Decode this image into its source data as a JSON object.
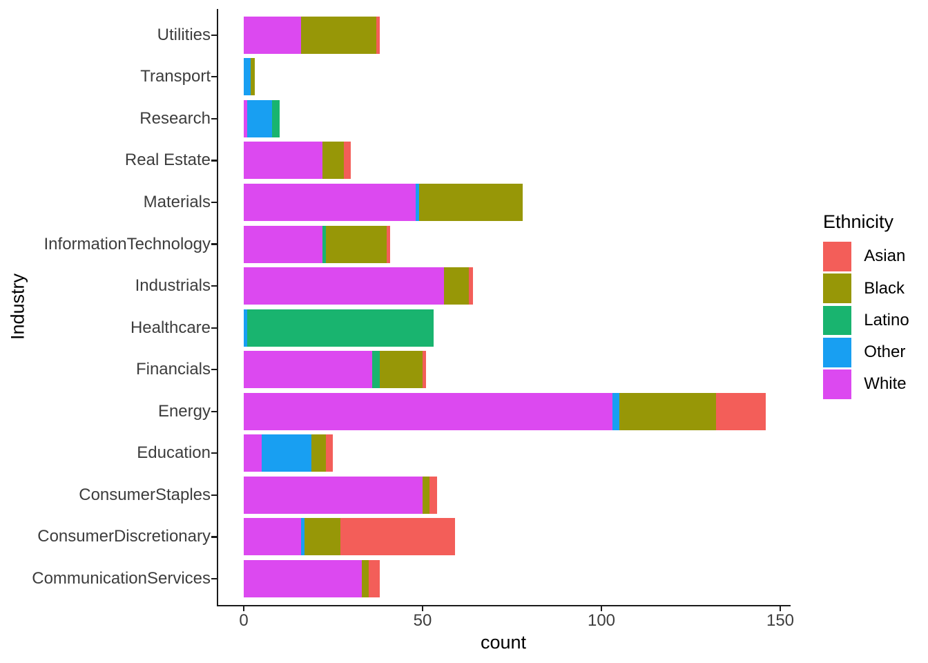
{
  "chart_data": {
    "type": "bar",
    "orientation": "horizontal",
    "stacked": true,
    "title": "",
    "xlabel": "count",
    "ylabel": "Industry",
    "xlim": [
      0,
      153
    ],
    "x_ticks": [
      "0",
      "50",
      "100",
      "150"
    ],
    "x_tick_values": [
      0,
      50,
      100,
      150
    ],
    "grid": false,
    "background": "#FFFFFF",
    "axis_text_color": "#3d3d3d",
    "axis_line_color": "#1a1a1a",
    "categories": [
      "Utilities",
      "Transport",
      "Research",
      "Real Estate",
      "Materials",
      "InformationTechnology",
      "Industrials",
      "Healthcare",
      "Financials",
      "Energy",
      "Education",
      "ConsumerStaples",
      "ConsumerDiscretionary",
      "CommunicationServices"
    ],
    "legend": {
      "title": "Ethnicity",
      "position": "right",
      "entries": [
        "Asian",
        "Black",
        "Latino",
        "Other",
        "White"
      ]
    },
    "series": [
      {
        "name": "Asian",
        "color": "#F35E59",
        "values": [
          1,
          0,
          0,
          2,
          0,
          1,
          1,
          0,
          1,
          14,
          2,
          2,
          32,
          3
        ]
      },
      {
        "name": "Black",
        "color": "#979707",
        "values": [
          21,
          1,
          0,
          6,
          29,
          17,
          7,
          0,
          12,
          27,
          4,
          2,
          10,
          2
        ]
      },
      {
        "name": "Latino",
        "color": "#19B46F",
        "values": [
          0,
          0,
          2,
          0,
          0,
          1,
          0,
          52,
          2,
          0,
          0,
          0,
          0,
          0
        ]
      },
      {
        "name": "Other",
        "color": "#189FF2",
        "values": [
          0,
          2,
          7,
          0,
          1,
          0,
          0,
          1,
          0,
          2,
          14,
          0,
          1,
          0
        ]
      },
      {
        "name": "White",
        "color": "#DC49F0",
        "values": [
          16,
          0,
          1,
          22,
          48,
          22,
          56,
          0,
          36,
          103,
          5,
          50,
          16,
          33
        ]
      }
    ],
    "stack_order_from_axis": [
      "White",
      "Other",
      "Latino",
      "Black",
      "Asian"
    ]
  }
}
